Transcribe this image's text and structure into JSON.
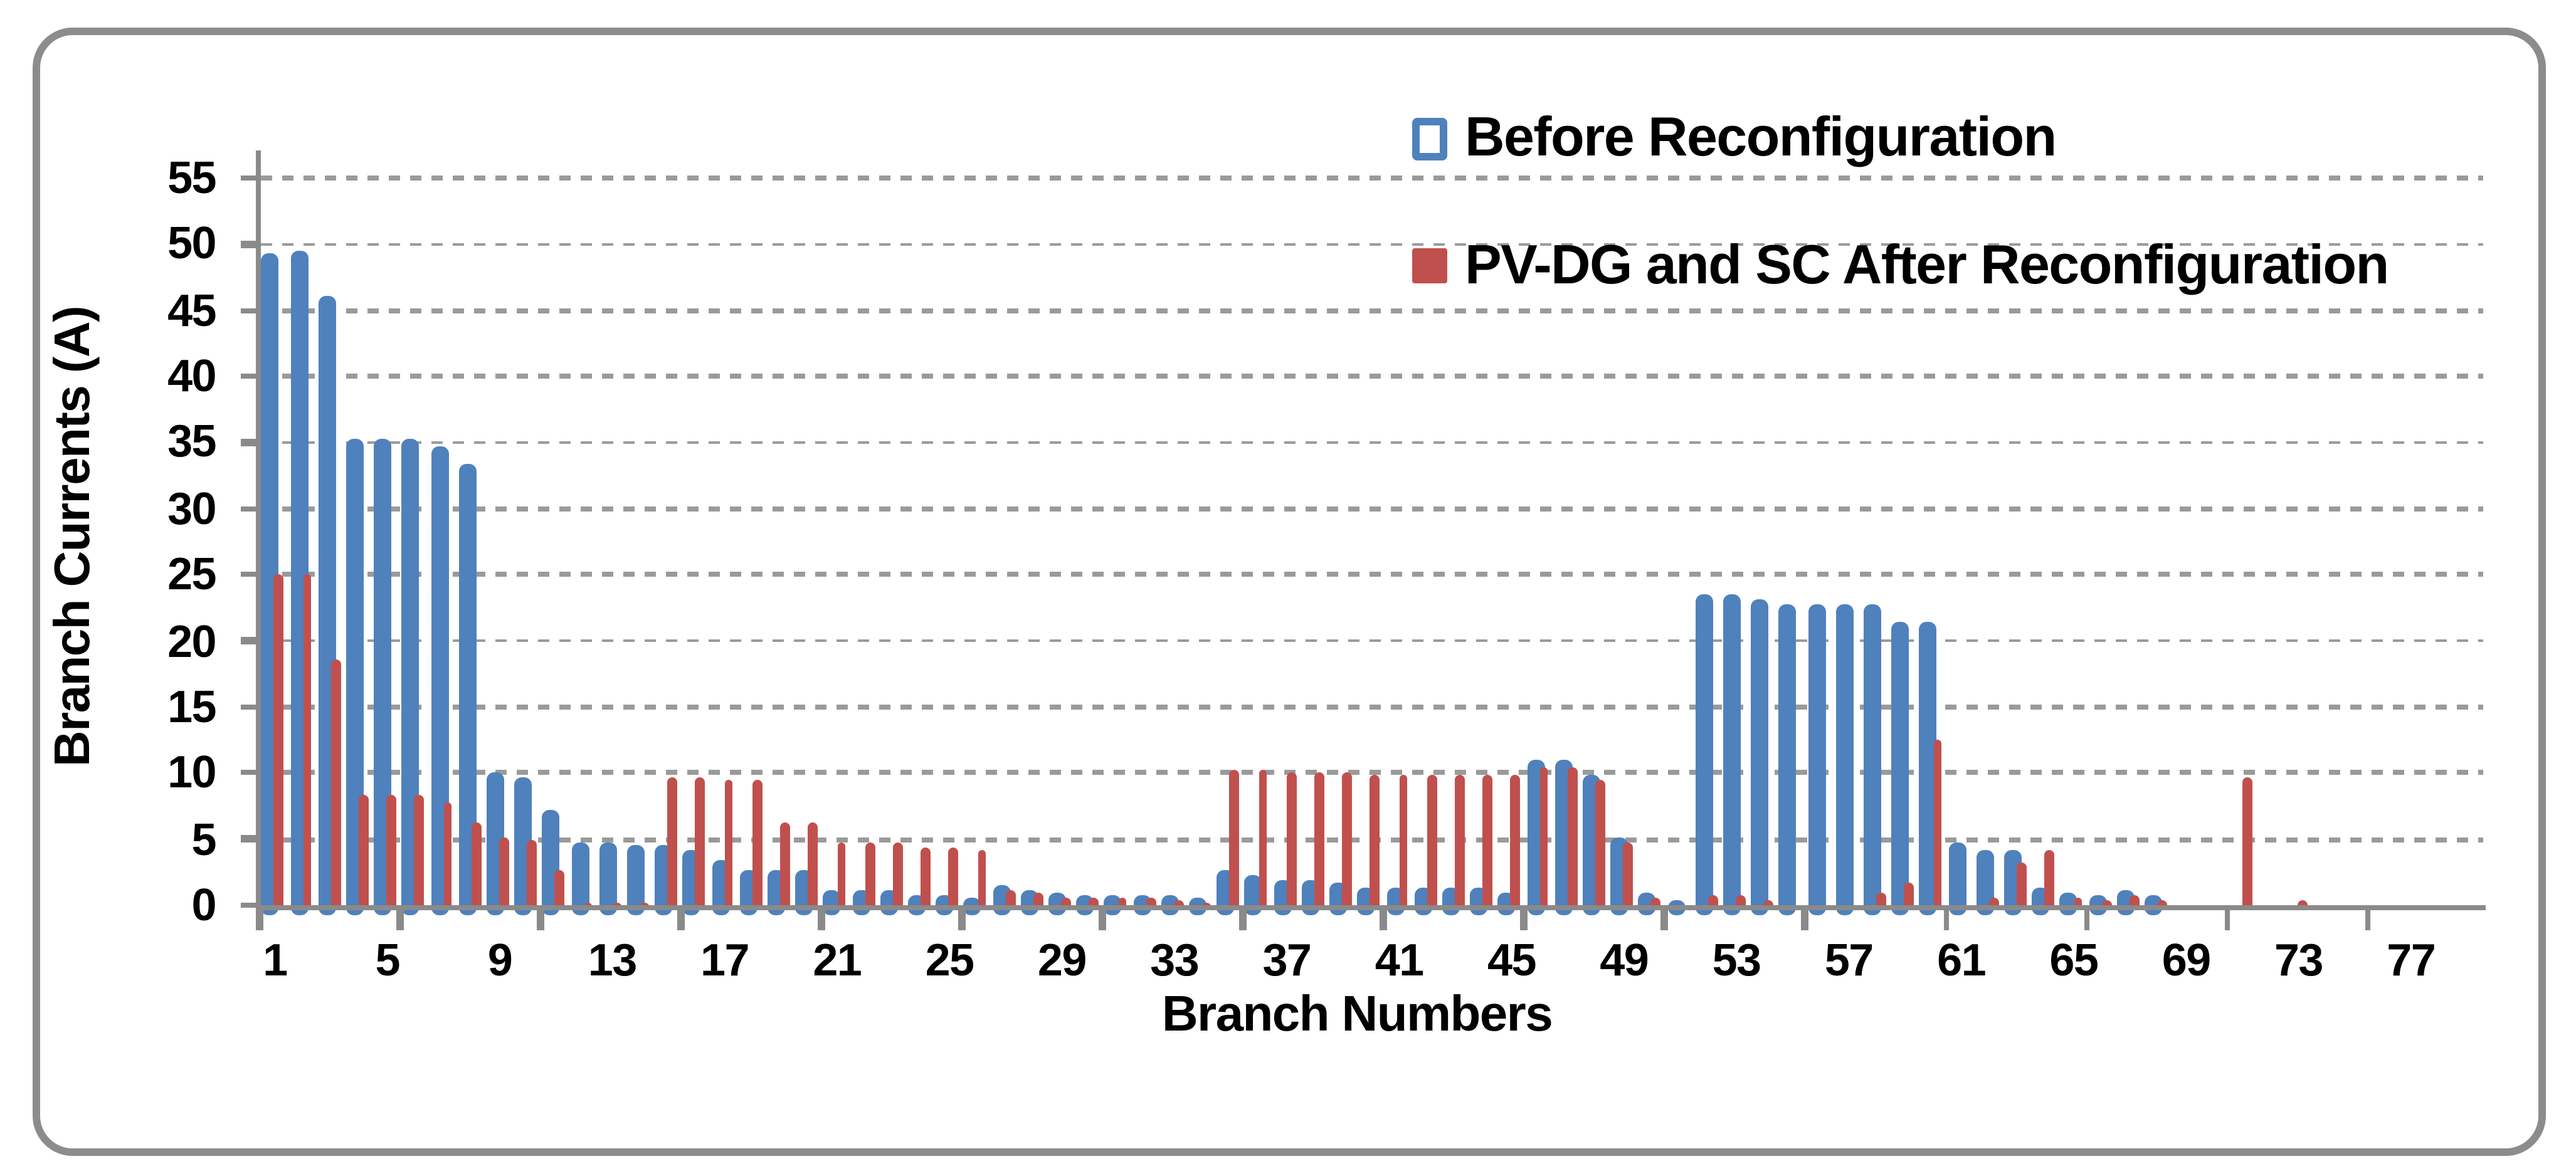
{
  "figure": {
    "background": "#FFFFFF",
    "frame_color": "#8C8C8C"
  },
  "legend": {
    "position": "top-right-inside",
    "items": [
      {
        "label": "Before Reconfiguration",
        "color": "#4F81BD",
        "marker": "hollow-square-icon"
      },
      {
        "label": "PV-DG and SC After Reconfiguration",
        "color": "#C0504D",
        "marker": "filled-square-icon"
      }
    ]
  },
  "chart_data": {
    "type": "bar",
    "title": "",
    "xlabel": "Branch Numbers",
    "ylabel": "Branch Currents (A)",
    "ylim": [
      0,
      55
    ],
    "ytick_interval": 5,
    "ytick_labels": [
      "0",
      "5",
      "10",
      "15",
      "20",
      "25",
      "30",
      "35",
      "40",
      "45",
      "50",
      "55"
    ],
    "grid": "horizontal-dashed",
    "gridline_color": "#9A9A9A",
    "axis_color": "#8A8A8A",
    "n_categories": 78,
    "x_tick_labels": [
      1,
      5,
      9,
      13,
      17,
      21,
      25,
      29,
      33,
      37,
      41,
      45,
      49,
      53,
      57,
      61,
      65,
      69,
      73,
      77
    ],
    "x_tick_mark_interval": 5,
    "categories_note": "branch numbers 1-78",
    "series": [
      {
        "name": "Before Reconfiguration",
        "color": "#4F81BD",
        "values": [
          49.4,
          49.5,
          46.0,
          35.3,
          35.3,
          35.3,
          34.8,
          33.4,
          10.0,
          9.6,
          7.3,
          4.8,
          4.7,
          4.6,
          4.6,
          4.2,
          3.4,
          2.7,
          2.7,
          2.7,
          1.1,
          1.1,
          1.1,
          0.8,
          0.8,
          0.6,
          1.5,
          1.2,
          0.9,
          0.8,
          0.8,
          0.8,
          0.7,
          0.5,
          2.6,
          2.3,
          1.9,
          1.9,
          1.7,
          1.4,
          1.3,
          1.3,
          1.3,
          1.3,
          1.0,
          11.0,
          11.0,
          9.9,
          5.2,
          0.9,
          0.4,
          23.5,
          23.5,
          23.1,
          22.7,
          22.7,
          22.7,
          22.8,
          21.4,
          21.4,
          4.7,
          4.2,
          4.2,
          1.3,
          0.9,
          0.7,
          1.1,
          0.8,
          0,
          0,
          0,
          0,
          0,
          0,
          0,
          0,
          0,
          0
        ]
      },
      {
        "name": "PV-DG and SC After Reconfiguration",
        "color": "#C0504D",
        "values": [
          25.0,
          25.0,
          18.6,
          8.4,
          8.4,
          8.4,
          7.7,
          6.3,
          5.2,
          4.9,
          2.7,
          0.2,
          0.1,
          0.1,
          9.7,
          9.6,
          9.5,
          9.5,
          6.2,
          6.2,
          4.8,
          4.7,
          4.7,
          4.4,
          4.4,
          4.2,
          1.1,
          0.9,
          0.5,
          0.5,
          0.5,
          0.5,
          0.4,
          0.1,
          10.3,
          10.2,
          10.1,
          10.1,
          10.0,
          9.9,
          9.9,
          9.9,
          9.9,
          9.9,
          9.9,
          10.4,
          10.4,
          9.4,
          4.7,
          0.6,
          0,
          0.7,
          0.8,
          0.4,
          0,
          0,
          0,
          0.9,
          1.8,
          12.5,
          0,
          0.5,
          3.3,
          4.1,
          0.5,
          0.3,
          0.8,
          0.4,
          0,
          0,
          9.6,
          0,
          0.3,
          0,
          0,
          0,
          0,
          0
        ]
      }
    ]
  }
}
